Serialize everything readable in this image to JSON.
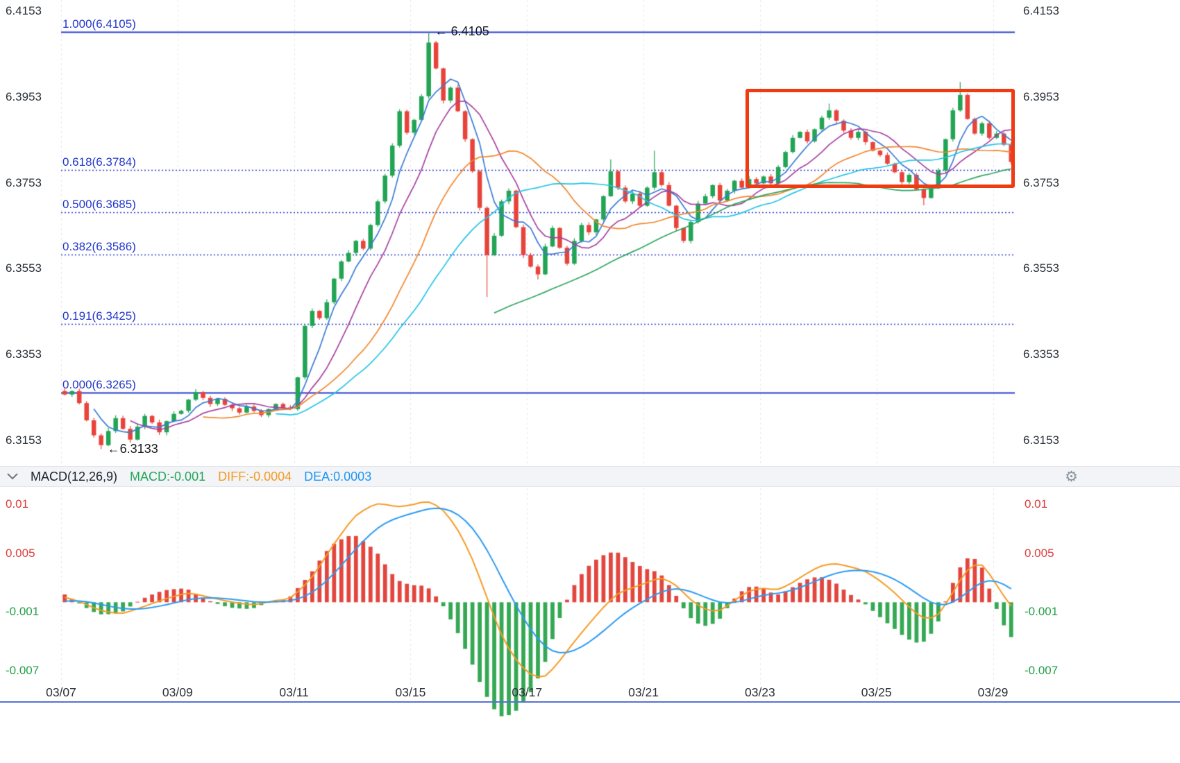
{
  "macd_header": {
    "title": "MACD(12,26,9)",
    "macd": "MACD:-0.001",
    "diff": "DIFF:-0.0004",
    "dea": "DEA:0.0003"
  },
  "chart_data": {
    "type": "candlestick_with_macd",
    "colors": {
      "candle_up": "#21a453",
      "candle_down": "#e8433a",
      "fib": "#2438cc",
      "grid": "#e4e7ec",
      "axis_text": "#2b3138",
      "macd_tick_pos": "#e03e3e",
      "macd_tick_neg": "#23a046",
      "hist_pos": "#e2453d",
      "hist_neg": "#35a853",
      "diff_line": "#f59a23",
      "dea_line": "#2b9af3",
      "highlight": "#ee3b12",
      "bottom_line": "#5472d3",
      "fib_solid_width": 2
    },
    "price_panel": {
      "y_ticks": [
        {
          "label": "6.4153",
          "value": 6.4153
        },
        {
          "label": "6.3953",
          "value": 6.3953
        },
        {
          "label": "6.3753",
          "value": 6.3753
        },
        {
          "label": "6.3553",
          "value": 6.3553
        },
        {
          "label": "6.3353",
          "value": 6.3353
        },
        {
          "label": "6.3153",
          "value": 6.3153
        }
      ],
      "y_range": {
        "top": 6.4176,
        "bottom": 6.3111
      },
      "fib_levels": [
        {
          "label": "1.000(6.4105)",
          "value": 6.4105,
          "style": "solid"
        },
        {
          "label": "0.618(6.3784)",
          "value": 6.3784,
          "style": "dashed"
        },
        {
          "label": "0.500(6.3685)",
          "value": 6.3685,
          "style": "dashed"
        },
        {
          "label": "0.382(6.3586)",
          "value": 6.3586,
          "style": "dashed"
        },
        {
          "label": "0.191(6.3425)",
          "value": 6.3425,
          "style": "dashed"
        },
        {
          "label": "0.000(6.3265)",
          "value": 6.3265,
          "style": "solid"
        }
      ],
      "annotations": [
        {
          "text": "← 6.4105",
          "candle_index": 50,
          "value": 6.4105,
          "side": "high"
        },
        {
          "text": "←6.3133",
          "candle_index": 5,
          "value": 6.3133,
          "side": "low"
        }
      ],
      "highlight_box": {
        "start_index": 94,
        "price_top": 6.3972,
        "price_bottom": 6.3742
      },
      "ma_lines": [
        {
          "period": 5,
          "color": "#3a7bd5"
        },
        {
          "period": 10,
          "color": "#a640a0"
        },
        {
          "period": 20,
          "color": "#f2862c"
        },
        {
          "period": 30,
          "color": "#23c3e6"
        },
        {
          "period": 60,
          "color": "#2fa45f"
        }
      ],
      "first_open": 6.3268,
      "closes": [
        6.326,
        6.3268,
        6.324,
        6.32,
        6.3165,
        6.3142,
        6.3175,
        6.3205,
        6.318,
        6.3155,
        6.3185,
        6.321,
        6.3195,
        6.3172,
        6.3198,
        6.3215,
        6.3222,
        6.3248,
        6.3266,
        6.3252,
        6.3238,
        6.325,
        6.3236,
        6.3228,
        6.3218,
        6.3232,
        6.3222,
        6.3212,
        6.3226,
        6.3238,
        6.323,
        6.3226,
        6.33,
        6.342,
        6.3455,
        6.3438,
        6.3475,
        6.353,
        6.357,
        6.359,
        6.3618,
        6.36,
        6.3655,
        6.371,
        6.377,
        6.384,
        6.392,
        6.387,
        6.39,
        6.3955,
        6.408,
        6.402,
        6.3945,
        6.3975,
        6.392,
        6.3855,
        6.378,
        6.3695,
        6.3585,
        6.363,
        6.371,
        6.3735,
        6.365,
        6.3585,
        6.3558,
        6.354,
        6.3605,
        6.3648,
        6.3602,
        6.3565,
        6.3618,
        6.3655,
        6.3638,
        6.3668,
        6.3722,
        6.378,
        6.3742,
        6.371,
        6.3728,
        6.37,
        6.3742,
        6.3778,
        6.3748,
        6.37,
        6.3648,
        6.3618,
        6.3662,
        6.3705,
        6.3722,
        6.3748,
        6.3712,
        6.3735,
        6.3758,
        6.3742,
        6.3762,
        6.3752,
        6.3768,
        6.3752,
        6.379,
        6.3825,
        6.3858,
        6.3872,
        6.385,
        6.3878,
        6.3905,
        6.3922,
        6.3898,
        6.3875,
        6.3858,
        6.3872,
        6.3848,
        6.3828,
        6.3818,
        6.3798,
        6.3778,
        6.3755,
        6.3772,
        6.3738,
        6.3718,
        6.3742,
        6.3782,
        6.3855,
        6.3922,
        6.3958,
        6.3902,
        6.3868,
        6.3892,
        6.3858,
        6.3868,
        6.3842,
        6.3802
      ],
      "wick_overrides": {
        "5": {
          "low": 6.3133
        },
        "9": {
          "low": 6.3148
        },
        "50": {
          "high": 6.4105
        },
        "58": {
          "low": 6.3487
        },
        "65": {
          "low": 6.3528
        },
        "75": {
          "high": 6.3808
        },
        "81": {
          "high": 6.3828
        },
        "105": {
          "high": 6.3938
        },
        "118": {
          "low": 6.3701
        },
        "123": {
          "high": 6.3988
        }
      }
    },
    "macd_panel": {
      "params_label": "MACD(12,26,9)",
      "y_ticks": [
        {
          "label": "0.01",
          "value": 0.01
        },
        {
          "label": "0.005",
          "value": 0.005
        },
        {
          "label": "-0.001",
          "value": -0.001
        },
        {
          "label": "-0.007",
          "value": -0.007
        }
      ],
      "y_range": {
        "top": 0.0115,
        "bottom": -0.0082
      },
      "dea_period": 9,
      "hist_scale": 2,
      "diff_points": [
        [
          0,
          0.0005
        ],
        [
          2,
          0.0001
        ],
        [
          5,
          -0.0009
        ],
        [
          8,
          -0.0012
        ],
        [
          11,
          -0.0004
        ],
        [
          14,
          0.0004
        ],
        [
          17,
          0.001
        ],
        [
          20,
          0.0005
        ],
        [
          23,
          0.0
        ],
        [
          26,
          -0.0003
        ],
        [
          29,
          0.0002
        ],
        [
          31,
          0.0003
        ],
        [
          34,
          0.0025
        ],
        [
          37,
          0.006
        ],
        [
          40,
          0.009
        ],
        [
          43,
          0.0102
        ],
        [
          46,
          0.0097
        ],
        [
          48,
          0.01
        ],
        [
          50,
          0.0104
        ],
        [
          52,
          0.0095
        ],
        [
          54,
          0.0075
        ],
        [
          56,
          0.0045
        ],
        [
          58,
          0.0005
        ],
        [
          60,
          -0.0035
        ],
        [
          62,
          -0.006
        ],
        [
          64,
          -0.0075
        ],
        [
          66,
          -0.0078
        ],
        [
          68,
          -0.006
        ],
        [
          70,
          -0.004
        ],
        [
          72,
          -0.0022
        ],
        [
          74,
          -0.0005
        ],
        [
          76,
          0.001
        ],
        [
          78,
          0.0015
        ],
        [
          80,
          0.002
        ],
        [
          82,
          0.0026
        ],
        [
          84,
          0.0018
        ],
        [
          86,
          0.0002
        ],
        [
          88,
          -0.0008
        ],
        [
          90,
          -0.001
        ],
        [
          92,
          0.0002
        ],
        [
          94,
          0.0012
        ],
        [
          96,
          0.0015
        ],
        [
          98,
          0.0012
        ],
        [
          100,
          0.002
        ],
        [
          102,
          0.003
        ],
        [
          104,
          0.0038
        ],
        [
          106,
          0.004
        ],
        [
          108,
          0.0036
        ],
        [
          110,
          0.0032
        ],
        [
          112,
          0.0022
        ],
        [
          114,
          0.001
        ],
        [
          116,
          -0.0005
        ],
        [
          118,
          -0.0018
        ],
        [
          120,
          -0.0015
        ],
        [
          122,
          0.001
        ],
        [
          124,
          0.0035
        ],
        [
          126,
          0.0042
        ],
        [
          127,
          0.003
        ],
        [
          128,
          0.0018
        ],
        [
          129,
          0.0006
        ],
        [
          130,
          -0.0004
        ]
      ]
    },
    "x_axis": {
      "labels": [
        "03/07",
        "03/09",
        "03/11",
        "03/15",
        "03/17",
        "03/21",
        "03/23",
        "03/25",
        "03/29"
      ],
      "candles_per_label": 16
    }
  }
}
